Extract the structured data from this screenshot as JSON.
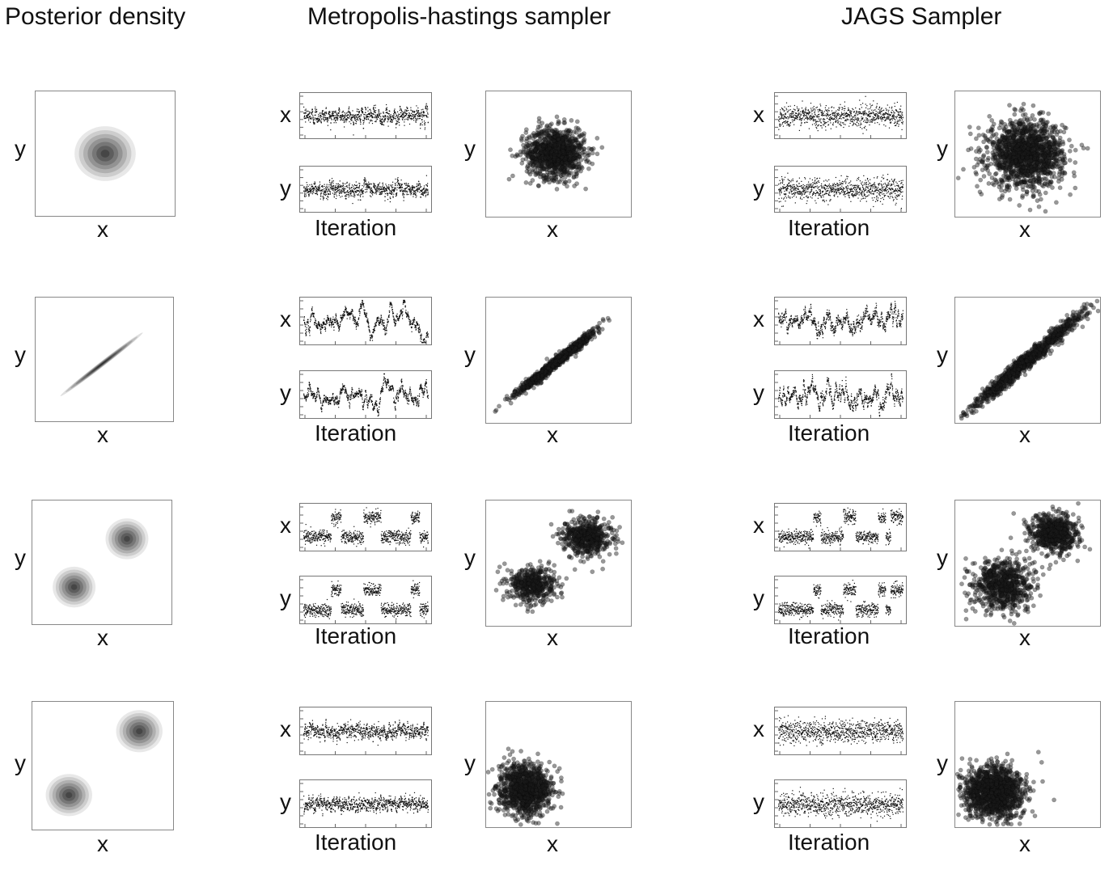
{
  "titles": {
    "posterior": "Posterior density",
    "mh": "Metropolis-hastings sampler",
    "jags": "JAGS Sampler"
  },
  "labels": {
    "x": "x",
    "y": "y",
    "iteration": "Iteration"
  },
  "colors": {
    "ink": "#111111",
    "frame": "#888888"
  },
  "chart_data": [
    {
      "type": "heatmap",
      "row": 1,
      "column": "Posterior density",
      "xlabel": "x",
      "ylabel": "y",
      "components": [
        {
          "mean": [
            0.5,
            0.5
          ],
          "sd": [
            0.1,
            0.1
          ],
          "rho": 0
        }
      ]
    },
    {
      "type": "line",
      "row": 1,
      "column": "Metropolis-hastings sampler",
      "xlabel": "Iteration",
      "series": [
        {
          "name": "x"
        },
        {
          "name": "y"
        }
      ]
    },
    {
      "type": "scatter",
      "row": 1,
      "column": "Metropolis-hastings sampler",
      "xlabel": "x",
      "ylabel": "y",
      "clusters": [
        {
          "mean": [
            0.48,
            0.51
          ],
          "sd": [
            0.1,
            0.1
          ],
          "rho": 0,
          "share": 1
        }
      ]
    },
    {
      "type": "line",
      "row": 1,
      "column": "JAGS Sampler",
      "xlabel": "Iteration",
      "series": [
        {
          "name": "x"
        },
        {
          "name": "y"
        }
      ]
    },
    {
      "type": "scatter",
      "row": 1,
      "column": "JAGS Sampler",
      "xlabel": "x",
      "ylabel": "y",
      "clusters": [
        {
          "mean": [
            0.49,
            0.5
          ],
          "sd": [
            0.13,
            0.13
          ],
          "rho": 0,
          "share": 1
        }
      ]
    },
    {
      "type": "heatmap",
      "row": 2,
      "column": "Posterior density",
      "xlabel": "x",
      "ylabel": "y",
      "components": [
        {
          "mean": [
            0.48,
            0.46
          ],
          "sd": [
            0.14,
            0.12
          ],
          "rho": 0.98
        }
      ]
    },
    {
      "type": "line",
      "row": 2,
      "column": "Metropolis-hastings sampler",
      "xlabel": "Iteration",
      "series": [
        {
          "name": "x"
        },
        {
          "name": "y"
        }
      ]
    },
    {
      "type": "scatter",
      "row": 2,
      "column": "Metropolis-hastings sampler",
      "xlabel": "x",
      "ylabel": "y",
      "clusters": [
        {
          "mean": [
            0.48,
            0.48
          ],
          "sd": [
            0.14,
            0.13
          ],
          "rho": 0.985,
          "share": 1
        }
      ]
    },
    {
      "type": "line",
      "row": 2,
      "column": "JAGS Sampler",
      "xlabel": "Iteration",
      "series": [
        {
          "name": "x"
        },
        {
          "name": "y"
        }
      ]
    },
    {
      "type": "scatter",
      "row": 2,
      "column": "JAGS Sampler",
      "xlabel": "x",
      "ylabel": "y",
      "clusters": [
        {
          "mean": [
            0.5,
            0.5
          ],
          "sd": [
            0.2,
            0.2
          ],
          "rho": 0.985,
          "share": 1
        }
      ]
    },
    {
      "type": "heatmap",
      "row": 3,
      "column": "Posterior density",
      "xlabel": "x",
      "ylabel": "y",
      "components": [
        {
          "mean": [
            0.3,
            0.3
          ],
          "sd": [
            0.07,
            0.075
          ],
          "rho": 0
        },
        {
          "mean": [
            0.68,
            0.69
          ],
          "sd": [
            0.07,
            0.075
          ],
          "rho": 0
        }
      ]
    },
    {
      "type": "line",
      "row": 3,
      "column": "Metropolis-hastings sampler",
      "xlabel": "Iteration",
      "series": [
        {
          "name": "x"
        },
        {
          "name": "y"
        }
      ]
    },
    {
      "type": "scatter",
      "row": 3,
      "column": "Metropolis-hastings sampler",
      "xlabel": "x",
      "ylabel": "y",
      "clusters": [
        {
          "mean": [
            0.32,
            0.33
          ],
          "sd": [
            0.08,
            0.07
          ],
          "rho": 0,
          "share": 0.45
        },
        {
          "mean": [
            0.7,
            0.71
          ],
          "sd": [
            0.08,
            0.07
          ],
          "rho": 0,
          "share": 0.55
        }
      ]
    },
    {
      "type": "line",
      "row": 3,
      "column": "JAGS Sampler",
      "xlabel": "Iteration",
      "series": [
        {
          "name": "x"
        },
        {
          "name": "y"
        }
      ]
    },
    {
      "type": "scatter",
      "row": 3,
      "column": "JAGS Sampler",
      "xlabel": "x",
      "ylabel": "y",
      "clusters": [
        {
          "mean": [
            0.33,
            0.33
          ],
          "sd": [
            0.1,
            0.1
          ],
          "rho": 0,
          "share": 0.52
        },
        {
          "mean": [
            0.68,
            0.73
          ],
          "sd": [
            0.08,
            0.08
          ],
          "rho": 0,
          "share": 0.48
        }
      ]
    },
    {
      "type": "heatmap",
      "row": 4,
      "column": "Posterior density",
      "xlabel": "x",
      "ylabel": "y",
      "components": [
        {
          "mean": [
            0.26,
            0.27
          ],
          "sd": [
            0.075,
            0.075
          ],
          "rho": 0
        },
        {
          "mean": [
            0.76,
            0.77
          ],
          "sd": [
            0.075,
            0.075
          ],
          "rho": 0
        }
      ]
    },
    {
      "type": "line",
      "row": 4,
      "column": "Metropolis-hastings sampler",
      "xlabel": "Iteration",
      "series": [
        {
          "name": "x"
        },
        {
          "name": "y"
        }
      ]
    },
    {
      "type": "scatter",
      "row": 4,
      "column": "Metropolis-hastings sampler",
      "xlabel": "x",
      "ylabel": "y",
      "clusters": [
        {
          "mean": [
            0.27,
            0.3
          ],
          "sd": [
            0.09,
            0.1
          ],
          "rho": 0,
          "share": 1
        }
      ]
    },
    {
      "type": "line",
      "row": 4,
      "column": "JAGS Sampler",
      "xlabel": "Iteration",
      "series": [
        {
          "name": "x"
        },
        {
          "name": "y"
        }
      ]
    },
    {
      "type": "scatter",
      "row": 4,
      "column": "JAGS Sampler",
      "xlabel": "x",
      "ylabel": "y",
      "clusters": [
        {
          "mean": [
            0.26,
            0.28
          ],
          "sd": [
            0.1,
            0.1
          ],
          "rho": 0,
          "share": 1
        }
      ]
    }
  ]
}
